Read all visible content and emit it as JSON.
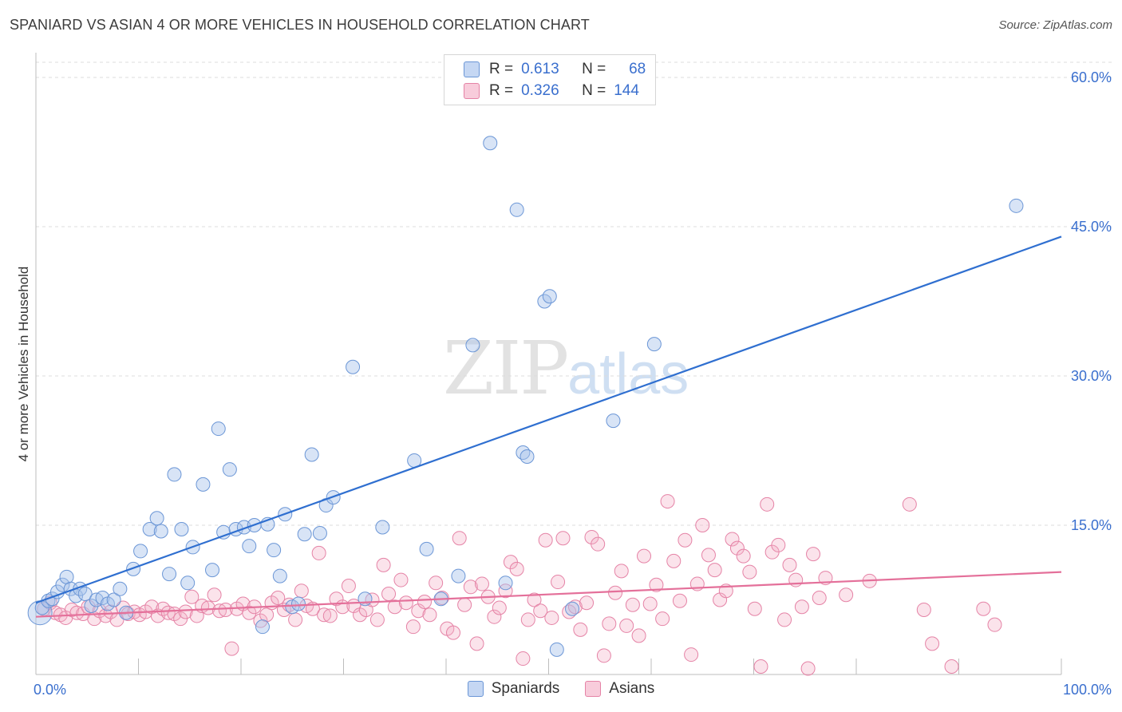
{
  "header": {
    "title": "SPANIARD VS ASIAN 4 OR MORE VEHICLES IN HOUSEHOLD CORRELATION CHART",
    "source": "Source: ZipAtlas.com"
  },
  "watermark": {
    "zip": "ZIP",
    "atlas": "atlas"
  },
  "legend": {
    "rows": [
      {
        "r_label": "R =",
        "r_value": "0.613",
        "n_label": "N =",
        "n_value": "68",
        "color": "#a9c4ec"
      },
      {
        "r_label": "R =",
        "r_value": "0.326",
        "n_label": "N =",
        "n_value": "144",
        "color": "#f3b0c7"
      }
    ]
  },
  "bottom_legend": {
    "spaniards": "Spaniards",
    "asians": "Asians"
  },
  "colors": {
    "blue_fill": "#a9c4ec",
    "blue_stroke": "#6b96d6",
    "blue_line": "#2f6fd0",
    "pink_fill": "#f3b0c7",
    "pink_stroke": "#e583a6",
    "pink_line": "#e4709a",
    "tick_label": "#3a6fce",
    "grid": "#dcdcdc"
  },
  "chart_data": {
    "type": "scatter",
    "title": "SPANIARD VS ASIAN 4 OR MORE VEHICLES IN HOUSEHOLD CORRELATION CHART",
    "xlabel": "",
    "ylabel": "4 or more Vehicles in Household",
    "xlim": [
      0,
      100
    ],
    "ylim": [
      0,
      60
    ],
    "x_tick_labels": [
      "0.0%",
      "100.0%"
    ],
    "y_ticks": [
      15,
      30,
      45,
      60
    ],
    "y_tick_labels": [
      "15.0%",
      "30.0%",
      "45.0%",
      "60.0%"
    ],
    "grid": true,
    "legend_position": "top-center",
    "series": [
      {
        "name": "Spaniards",
        "r": 0.613,
        "n": 68,
        "trend": {
          "x": [
            0,
            100
          ],
          "y": [
            7.2,
            44.0
          ]
        },
        "points": [
          [
            0.6,
            6.7
          ],
          [
            1.2,
            7.4
          ],
          [
            1.6,
            7.6
          ],
          [
            2.1,
            8.3
          ],
          [
            2.6,
            9.0
          ],
          [
            3.0,
            9.8
          ],
          [
            3.4,
            8.6
          ],
          [
            3.9,
            7.9
          ],
          [
            4.3,
            8.6
          ],
          [
            4.8,
            8.1
          ],
          [
            5.4,
            6.9
          ],
          [
            5.9,
            7.5
          ],
          [
            6.5,
            7.7
          ],
          [
            7.0,
            7.1
          ],
          [
            7.6,
            7.5
          ],
          [
            8.2,
            8.6
          ],
          [
            8.8,
            6.2
          ],
          [
            9.5,
            10.6
          ],
          [
            10.2,
            12.4
          ],
          [
            11.1,
            14.6
          ],
          [
            11.8,
            15.7
          ],
          [
            12.2,
            14.4
          ],
          [
            13.0,
            10.1
          ],
          [
            13.5,
            20.1
          ],
          [
            14.2,
            14.6
          ],
          [
            14.8,
            9.2
          ],
          [
            15.3,
            12.8
          ],
          [
            16.3,
            19.1
          ],
          [
            17.2,
            10.5
          ],
          [
            17.8,
            24.7
          ],
          [
            18.3,
            14.3
          ],
          [
            18.9,
            20.6
          ],
          [
            19.5,
            14.6
          ],
          [
            20.3,
            14.8
          ],
          [
            20.8,
            12.9
          ],
          [
            21.3,
            15.0
          ],
          [
            22.1,
            4.8
          ],
          [
            22.6,
            15.1
          ],
          [
            23.2,
            12.5
          ],
          [
            23.8,
            9.9
          ],
          [
            24.3,
            16.1
          ],
          [
            25.0,
            6.8
          ],
          [
            25.6,
            7.1
          ],
          [
            26.2,
            14.1
          ],
          [
            26.9,
            22.1
          ],
          [
            27.7,
            14.2
          ],
          [
            28.3,
            17.0
          ],
          [
            29.0,
            17.8
          ],
          [
            30.9,
            30.9
          ],
          [
            32.1,
            7.6
          ],
          [
            33.8,
            14.8
          ],
          [
            36.9,
            21.5
          ],
          [
            38.1,
            12.6
          ],
          [
            39.5,
            7.6
          ],
          [
            46.9,
            46.7
          ],
          [
            41.2,
            9.9
          ],
          [
            42.6,
            33.1
          ],
          [
            44.3,
            53.4
          ],
          [
            45.8,
            9.2
          ],
          [
            47.5,
            22.3
          ],
          [
            47.9,
            21.9
          ],
          [
            49.6,
            37.5
          ],
          [
            50.1,
            38.0
          ],
          [
            50.8,
            2.5
          ],
          [
            52.3,
            6.6
          ],
          [
            56.3,
            25.5
          ],
          [
            60.3,
            33.2
          ],
          [
            95.6,
            47.1
          ]
        ]
      },
      {
        "name": "Asians",
        "r": 0.326,
        "n": 144,
        "trend": {
          "x": [
            0,
            100
          ],
          "y": [
            5.8,
            10.3
          ]
        },
        "points": [
          [
            0.8,
            6.6
          ],
          [
            1.4,
            7.2
          ],
          [
            1.9,
            6.2
          ],
          [
            2.4,
            6.0
          ],
          [
            2.9,
            5.7
          ],
          [
            3.5,
            6.5
          ],
          [
            4.0,
            6.2
          ],
          [
            4.6,
            6.1
          ],
          [
            5.1,
            6.8
          ],
          [
            5.7,
            5.6
          ],
          [
            6.2,
            6.4
          ],
          [
            6.8,
            5.9
          ],
          [
            7.3,
            6.3
          ],
          [
            7.9,
            5.5
          ],
          [
            8.5,
            6.7
          ],
          [
            9.0,
            6.1
          ],
          [
            9.6,
            6.3
          ],
          [
            10.1,
            6.0
          ],
          [
            10.7,
            6.3
          ],
          [
            11.3,
            6.8
          ],
          [
            11.9,
            5.9
          ],
          [
            12.4,
            6.6
          ],
          [
            12.9,
            6.2
          ],
          [
            13.5,
            6.1
          ],
          [
            14.1,
            5.6
          ],
          [
            14.6,
            6.3
          ],
          [
            15.2,
            7.8
          ],
          [
            15.7,
            5.9
          ],
          [
            16.2,
            6.9
          ],
          [
            16.8,
            6.7
          ],
          [
            17.4,
            8.0
          ],
          [
            17.9,
            6.4
          ],
          [
            18.5,
            6.5
          ],
          [
            19.1,
            2.6
          ],
          [
            19.6,
            6.6
          ],
          [
            20.2,
            7.1
          ],
          [
            20.8,
            6.2
          ],
          [
            21.3,
            6.8
          ],
          [
            21.9,
            5.4
          ],
          [
            22.5,
            6.0
          ],
          [
            23.0,
            7.2
          ],
          [
            23.6,
            7.7
          ],
          [
            24.2,
            6.5
          ],
          [
            24.7,
            7.0
          ],
          [
            25.3,
            5.5
          ],
          [
            25.9,
            8.4
          ],
          [
            26.4,
            6.9
          ],
          [
            27.0,
            6.6
          ],
          [
            27.6,
            12.2
          ],
          [
            28.1,
            6.0
          ],
          [
            28.7,
            5.9
          ],
          [
            29.3,
            7.6
          ],
          [
            29.9,
            6.8
          ],
          [
            30.5,
            8.9
          ],
          [
            31.0,
            6.9
          ],
          [
            31.6,
            6.0
          ],
          [
            32.2,
            6.5
          ],
          [
            32.8,
            7.5
          ],
          [
            33.3,
            5.5
          ],
          [
            33.9,
            11.0
          ],
          [
            34.4,
            8.1
          ],
          [
            35.0,
            6.8
          ],
          [
            35.6,
            9.5
          ],
          [
            36.1,
            7.2
          ],
          [
            36.8,
            4.8
          ],
          [
            37.3,
            6.4
          ],
          [
            37.9,
            7.3
          ],
          [
            38.4,
            6.0
          ],
          [
            39.0,
            9.2
          ],
          [
            39.6,
            7.7
          ],
          [
            40.1,
            4.6
          ],
          [
            40.7,
            4.2
          ],
          [
            41.3,
            13.7
          ],
          [
            41.8,
            7.0
          ],
          [
            42.4,
            8.8
          ],
          [
            43.0,
            3.1
          ],
          [
            43.5,
            9.1
          ],
          [
            44.1,
            7.8
          ],
          [
            44.7,
            5.8
          ],
          [
            45.2,
            6.7
          ],
          [
            45.8,
            8.4
          ],
          [
            46.3,
            11.3
          ],
          [
            46.9,
            10.6
          ],
          [
            47.5,
            1.6
          ],
          [
            48.0,
            5.5
          ],
          [
            48.6,
            7.5
          ],
          [
            49.2,
            6.4
          ],
          [
            49.7,
            13.5
          ],
          [
            50.3,
            5.7
          ],
          [
            50.9,
            9.3
          ],
          [
            51.4,
            13.7
          ],
          [
            52.0,
            6.3
          ],
          [
            52.6,
            6.8
          ],
          [
            53.1,
            4.5
          ],
          [
            53.7,
            7.2
          ],
          [
            54.2,
            13.8
          ],
          [
            54.8,
            13.1
          ],
          [
            55.4,
            1.9
          ],
          [
            55.9,
            5.1
          ],
          [
            56.5,
            8.2
          ],
          [
            57.1,
            10.4
          ],
          [
            57.6,
            4.9
          ],
          [
            58.2,
            7.0
          ],
          [
            58.8,
            3.9
          ],
          [
            59.3,
            11.9
          ],
          [
            59.9,
            7.1
          ],
          [
            60.5,
            9.0
          ],
          [
            61.1,
            5.6
          ],
          [
            61.6,
            17.4
          ],
          [
            62.2,
            11.4
          ],
          [
            62.8,
            7.4
          ],
          [
            63.3,
            13.5
          ],
          [
            63.9,
            2.0
          ],
          [
            64.5,
            9.1
          ],
          [
            65.0,
            15.0
          ],
          [
            65.6,
            12.0
          ],
          [
            66.2,
            10.5
          ],
          [
            66.7,
            7.5
          ],
          [
            67.3,
            8.4
          ],
          [
            67.9,
            13.6
          ],
          [
            68.4,
            12.7
          ],
          [
            69.0,
            11.9
          ],
          [
            69.6,
            10.3
          ],
          [
            70.1,
            6.6
          ],
          [
            70.7,
            0.8
          ],
          [
            71.3,
            17.1
          ],
          [
            71.8,
            12.3
          ],
          [
            72.4,
            13.0
          ],
          [
            73.0,
            5.5
          ],
          [
            73.5,
            11.0
          ],
          [
            74.1,
            9.5
          ],
          [
            74.7,
            6.8
          ],
          [
            75.3,
            0.6
          ],
          [
            75.8,
            12.1
          ],
          [
            76.4,
            7.7
          ],
          [
            77.0,
            9.7
          ],
          [
            79.0,
            8.0
          ],
          [
            81.3,
            9.4
          ],
          [
            85.2,
            17.1
          ],
          [
            86.6,
            6.5
          ],
          [
            87.4,
            3.1
          ],
          [
            89.3,
            0.8
          ],
          [
            92.4,
            6.6
          ],
          [
            93.5,
            5.0
          ]
        ]
      }
    ]
  }
}
